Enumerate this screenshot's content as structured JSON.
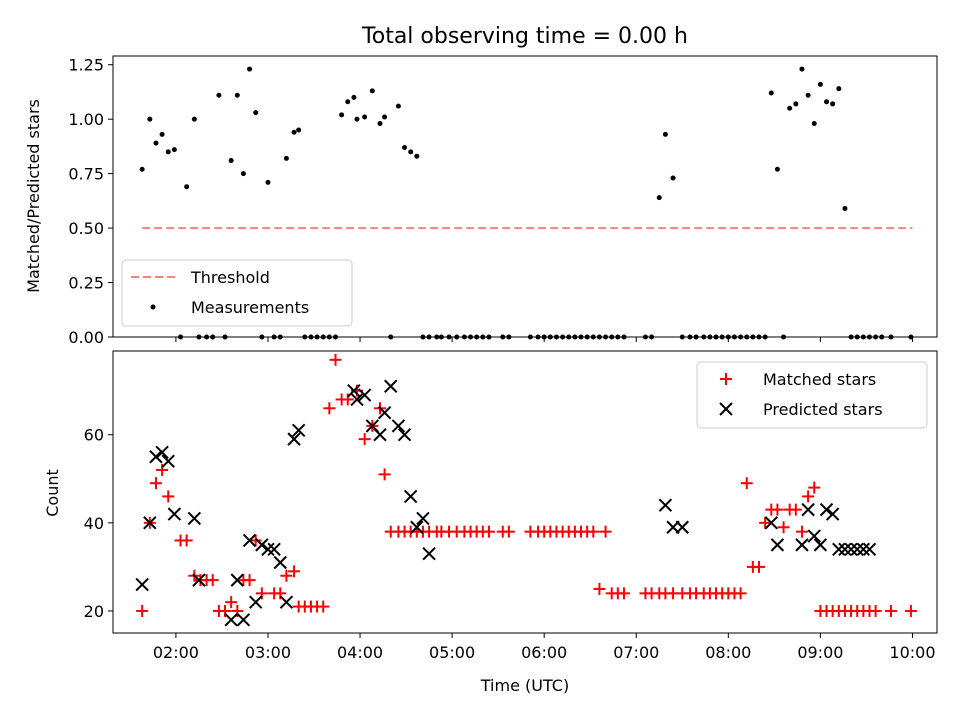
{
  "chart_data": [
    {
      "type": "scatter",
      "title": "Total observing time = 0.00 h",
      "xlabel": "",
      "ylabel": "Matched/Predicted stars",
      "ylim": [
        0,
        1.29
      ],
      "yticks": [
        0.0,
        0.25,
        0.5,
        0.75,
        1.0,
        1.25
      ],
      "ytick_labels": [
        "0.00",
        "0.25",
        "0.50",
        "0.75",
        "1.00",
        "1.25"
      ],
      "xlim": [
        "01:19",
        "10:16"
      ],
      "xticks": [
        "02:00",
        "03:00",
        "04:00",
        "05:00",
        "06:00",
        "07:00",
        "08:00",
        "09:00",
        "10:00"
      ],
      "tick_labels_visible": false,
      "grid": false,
      "legend_position": "lower-left",
      "series": [
        {
          "name": "Threshold",
          "style": "dashed-line",
          "color": "#ff7f7f",
          "x": [
            "01:38",
            "10:00"
          ],
          "y": [
            0.5,
            0.5
          ]
        },
        {
          "name": "Measurements",
          "style": "dot",
          "color": "#000000",
          "x": [
            "01:38",
            "01:43",
            "01:47",
            "01:51",
            "01:55",
            "01:59",
            "02:03",
            "02:07",
            "02:12",
            "02:15",
            "02:20",
            "02:24",
            "02:28",
            "02:32",
            "02:36",
            "02:40",
            "02:44",
            "02:48",
            "02:52",
            "02:56",
            "03:00",
            "03:04",
            "03:08",
            "03:12",
            "03:17",
            "03:20",
            "03:24",
            "03:28",
            "03:32",
            "03:36",
            "03:40",
            "03:44",
            "03:48",
            "03:52",
            "03:56",
            "03:58",
            "04:03",
            "04:08",
            "04:13",
            "04:16",
            "04:20",
            "04:25",
            "04:29",
            "04:33",
            "04:37",
            "04:41",
            "04:45",
            "04:50",
            "04:53",
            "04:58",
            "05:03",
            "05:08",
            "05:12",
            "05:16",
            "05:20",
            "05:24",
            "05:33",
            "05:37",
            "05:51",
            "05:56",
            "06:00",
            "06:04",
            "06:08",
            "06:12",
            "06:16",
            "06:20",
            "06:24",
            "06:28",
            "06:32",
            "06:36",
            "06:40",
            "06:44",
            "06:48",
            "06:52",
            "07:06",
            "07:10",
            "07:15",
            "07:19",
            "07:24",
            "07:30",
            "07:35",
            "07:39",
            "07:44",
            "07:48",
            "07:52",
            "07:56",
            "08:00",
            "08:04",
            "08:08",
            "08:12",
            "08:16",
            "08:20",
            "08:24",
            "08:28",
            "08:32",
            "08:36",
            "08:40",
            "08:44",
            "08:48",
            "08:52",
            "08:56",
            "09:00",
            "09:04",
            "09:08",
            "09:12",
            "09:16",
            "09:20",
            "09:24",
            "09:28",
            "09:32",
            "09:36",
            "09:40",
            "09:46",
            "09:59"
          ],
          "y": [
            0.77,
            1.0,
            0.89,
            0.93,
            0.85,
            0.86,
            0.0,
            0.69,
            1.0,
            0.0,
            0.0,
            0.0,
            1.11,
            0.0,
            0.81,
            1.11,
            0.75,
            1.23,
            1.03,
            0.0,
            0.71,
            0.0,
            0.0,
            0.82,
            0.94,
            0.95,
            0.0,
            0.0,
            0.0,
            0.0,
            0.0,
            0.0,
            1.02,
            1.08,
            1.1,
            1.0,
            1.01,
            1.13,
            0.98,
            1.01,
            0.0,
            1.06,
            0.87,
            0.85,
            0.83,
            0.0,
            0.0,
            0.0,
            0.0,
            0.0,
            0.0,
            0.0,
            0.0,
            0.0,
            0.0,
            0.0,
            0.0,
            0.0,
            0.0,
            0.0,
            0.0,
            0.0,
            0.0,
            0.0,
            0.0,
            0.0,
            0.0,
            0.0,
            0.0,
            0.0,
            0.0,
            0.0,
            0.0,
            0.0,
            0.0,
            0.0,
            0.64,
            0.93,
            0.73,
            0.0,
            0.0,
            0.0,
            0.0,
            0.0,
            0.0,
            0.0,
            0.0,
            0.0,
            0.0,
            0.0,
            0.0,
            0.0,
            0.0,
            1.12,
            0.77,
            0.0,
            1.05,
            1.07,
            1.23,
            1.11,
            0.98,
            1.16,
            1.08,
            1.07,
            1.14,
            0.59,
            0.0,
            0.0,
            0.0,
            0.0,
            0.0,
            0.0,
            0.0,
            0.0
          ]
        }
      ]
    },
    {
      "type": "scatter",
      "title": "",
      "xlabel": "Time (UTC)",
      "ylabel": "Count",
      "ylim": [
        15,
        79
      ],
      "yticks": [
        20,
        40,
        60
      ],
      "ytick_labels": [
        "20",
        "40",
        "60"
      ],
      "xlim": [
        "01:19",
        "10:16"
      ],
      "xticks": [
        "02:00",
        "03:00",
        "04:00",
        "05:00",
        "06:00",
        "07:00",
        "08:00",
        "09:00",
        "10:00"
      ],
      "xtick_labels": [
        "02:00",
        "03:00",
        "04:00",
        "05:00",
        "06:00",
        "07:00",
        "08:00",
        "09:00",
        "10:00"
      ],
      "grid": false,
      "legend_position": "top-right",
      "series": [
        {
          "name": "Matched stars",
          "style": "plus",
          "color": "#ff0000",
          "x": [
            "01:38",
            "01:43",
            "01:47",
            "01:51",
            "01:55",
            "02:03",
            "02:07",
            "02:12",
            "02:16",
            "02:20",
            "02:24",
            "02:28",
            "02:32",
            "02:36",
            "02:40",
            "02:44",
            "02:48",
            "02:52",
            "02:56",
            "03:04",
            "03:08",
            "03:12",
            "03:17",
            "03:20",
            "03:24",
            "03:28",
            "03:32",
            "03:36",
            "03:40",
            "03:44",
            "03:48",
            "03:52",
            "03:58",
            "04:03",
            "04:08",
            "04:13",
            "04:16",
            "04:20",
            "04:25",
            "04:29",
            "04:33",
            "04:37",
            "04:41",
            "04:45",
            "04:50",
            "04:53",
            "04:58",
            "05:03",
            "05:08",
            "05:12",
            "05:16",
            "05:20",
            "05:24",
            "05:33",
            "05:37",
            "05:51",
            "05:56",
            "06:00",
            "06:04",
            "06:08",
            "06:12",
            "06:16",
            "06:20",
            "06:24",
            "06:28",
            "06:32",
            "06:36",
            "06:40",
            "06:44",
            "06:48",
            "06:52",
            "07:06",
            "07:10",
            "07:15",
            "07:19",
            "07:24",
            "07:30",
            "07:35",
            "07:39",
            "07:44",
            "07:48",
            "07:52",
            "07:56",
            "08:00",
            "08:04",
            "08:08",
            "08:12",
            "08:16",
            "08:20",
            "08:24",
            "08:28",
            "08:32",
            "08:36",
            "08:40",
            "08:44",
            "08:48",
            "08:52",
            "08:56",
            "09:00",
            "09:04",
            "09:08",
            "09:12",
            "09:16",
            "09:20",
            "09:24",
            "09:28",
            "09:32",
            "09:36",
            "09:46",
            "09:59"
          ],
          "y": [
            20,
            40,
            49,
            52,
            46,
            36,
            36,
            28,
            27,
            27,
            27,
            20,
            20,
            22,
            20,
            27,
            27,
            36,
            24,
            24,
            24,
            28,
            29,
            21,
            21,
            21,
            21,
            21,
            66,
            77,
            68,
            68,
            70,
            59,
            62,
            66,
            51,
            38,
            38,
            38,
            38,
            38,
            38,
            38,
            38,
            38,
            38,
            38,
            38,
            38,
            38,
            38,
            38,
            38,
            38,
            38,
            38,
            38,
            38,
            38,
            38,
            38,
            38,
            38,
            38,
            38,
            25,
            38,
            24,
            24,
            24,
            24,
            24,
            24,
            24,
            24,
            24,
            24,
            24,
            24,
            24,
            24,
            24,
            24,
            24,
            24,
            49,
            30,
            30,
            40,
            43,
            43,
            39,
            43,
            43,
            38,
            46,
            48,
            20,
            20,
            20,
            20,
            20,
            20,
            20,
            20,
            20,
            20,
            20,
            20
          ],
          "y_note": ""
        },
        {
          "name": "Predicted stars",
          "style": "x",
          "color": "#000000",
          "x": [
            "01:38",
            "01:43",
            "01:47",
            "01:51",
            "01:55",
            "01:59",
            "02:12",
            "02:15",
            "02:36",
            "02:40",
            "02:44",
            "02:48",
            "02:52",
            "02:56",
            "03:00",
            "03:04",
            "03:08",
            "03:12",
            "03:17",
            "03:20",
            "03:56",
            "03:58",
            "04:03",
            "04:08",
            "04:13",
            "04:16",
            "04:20",
            "04:25",
            "04:29",
            "04:33",
            "04:37",
            "04:41",
            "04:45",
            "07:19",
            "07:24",
            "07:30",
            "08:28",
            "08:32",
            "08:48",
            "08:52",
            "08:56",
            "09:00",
            "09:04",
            "09:08",
            "09:12",
            "09:16",
            "09:20",
            "09:24",
            "09:28",
            "09:32"
          ],
          "y": [
            26,
            40,
            55,
            56,
            54,
            42,
            41,
            27,
            18,
            27,
            18,
            36,
            22,
            35,
            34,
            34,
            31,
            22,
            59,
            61,
            70,
            68,
            69,
            62,
            60,
            65,
            71,
            62,
            60,
            46,
            39,
            41,
            33,
            44,
            39,
            39,
            40,
            35,
            35,
            43,
            37,
            35,
            43,
            42,
            34,
            34,
            34,
            34,
            34,
            34
          ]
        }
      ]
    }
  ]
}
